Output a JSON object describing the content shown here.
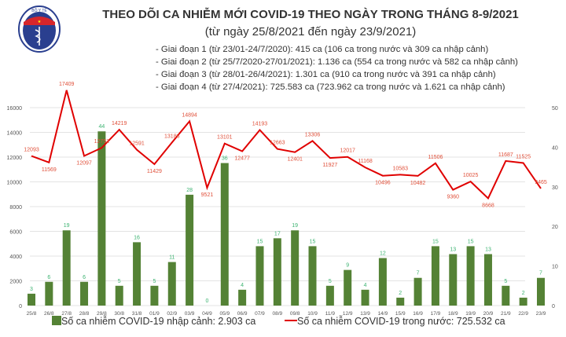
{
  "title": "THEO DÕI CA NHIỄM MỚI COVID-19 THEO NGÀY TRONG THÁNG 8-9/2021",
  "subtitle": "(từ ngày 25/8/2021 đến ngày 23/9/2021)",
  "logo_text": "BỘ Y TẾ - MINISTRY OF HEALTH",
  "notes": [
    "- Giai đoạn 1 (từ 23/01-24/7/2020): 415 ca (106 ca trong nước và 309 ca nhập cảnh)",
    "- Giai đoạn 2 (từ 25/7/2020-27/01/2021): 1.136 ca (554 ca trong nước và 582 ca nhập cảnh)",
    "- Giai đoạn 3 (từ 28/01-26/4/2021): 1.301 ca (910 ca trong nước và 391 ca nhập cảnh)",
    "- Giai đoạn 4 (từ 27/4/2021): 725.583 ca (723.962 ca trong nước và 1.621 ca nhập cảnh)"
  ],
  "chart_data": {
    "type": "bar+line",
    "categories": [
      "25/8",
      "26/8",
      "27/8",
      "28/8",
      "29/8",
      "30/8",
      "31/8",
      "01/9",
      "02/9",
      "03/9",
      "04/9",
      "05/9",
      "06/9",
      "07/9",
      "08/9",
      "09/8",
      "10/9",
      "11/9",
      "12/9",
      "13/9",
      "14/9",
      "15/9",
      "16/9",
      "17/9",
      "18/9",
      "19/9",
      "20/9",
      "21/9",
      "22/9",
      "23/9"
    ],
    "series": [
      {
        "name": "Số ca nhiễm COVID-19 nhập cảnh: 2.903 ca",
        "type": "bar",
        "axis": "right",
        "color": "#548235",
        "values": [
          3,
          6,
          19,
          6,
          44,
          5,
          16,
          5,
          11,
          28,
          0,
          36,
          4,
          15,
          17,
          19,
          15,
          5,
          9,
          4,
          12,
          2,
          7,
          15,
          13,
          15,
          13,
          5,
          2,
          7
        ]
      },
      {
        "name": "Số ca nhiễm COVID-19 trong nước: 725.532 ca",
        "type": "line",
        "axis": "left",
        "color": "#e00000",
        "values": [
          12093,
          11569,
          17409,
          12097,
          12752,
          14219,
          12591,
          11429,
          13186,
          14894,
          9521,
          13101,
          12477,
          14193,
          12663,
          12401,
          13306,
          11927,
          12017,
          11168,
          10496,
          10583,
          10482,
          11506,
          9360,
          10025,
          8668,
          11687,
          11525,
          9465
        ]
      }
    ],
    "left_axis": {
      "ticks": [
        0,
        2000,
        4000,
        6000,
        8000,
        10000,
        12000,
        14000,
        16000
      ]
    },
    "right_axis": {
      "ticks": [
        0,
        10,
        20,
        30,
        40,
        50
      ]
    },
    "grid": true,
    "legend": "bottom",
    "label_colors": {
      "bar": "#3cb371",
      "line": "#e0503a"
    }
  }
}
